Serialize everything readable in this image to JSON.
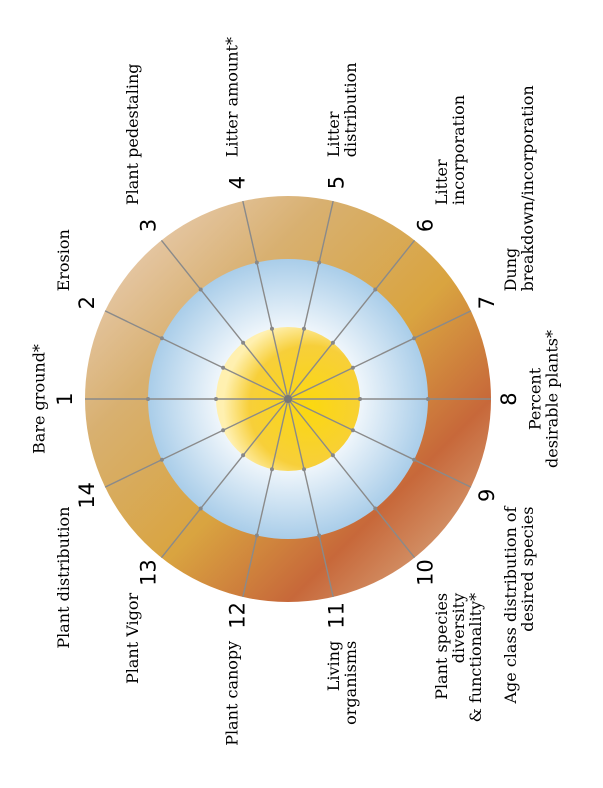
{
  "indicators": [
    {
      "number": "1",
      "label": [
        "Bare ground*"
      ]
    },
    {
      "number": "2",
      "label": [
        "Erosion"
      ]
    },
    {
      "number": "3",
      "label": [
        "Plant pedestaling"
      ]
    },
    {
      "number": "4",
      "label": [
        "Litter amount*"
      ]
    },
    {
      "number": "5",
      "label": [
        "Litter",
        "distribution"
      ]
    },
    {
      "number": "6",
      "label": [
        "Litter",
        "incorporation"
      ]
    },
    {
      "number": "7",
      "label": [
        "Dung",
        "breakdown/incorporation"
      ]
    },
    {
      "number": "8",
      "label": [
        "Percent",
        "desirable plants*"
      ]
    },
    {
      "number": "9",
      "label": [
        "Age class distribution of",
        "desired species"
      ]
    },
    {
      "number": "10",
      "label": [
        "Plant species",
        "diversity",
        "& functionality*"
      ]
    },
    {
      "number": "11",
      "label": [
        "Living",
        "organisms"
      ]
    },
    {
      "number": "12",
      "label": [
        "Plant canopy"
      ]
    },
    {
      "number": "13",
      "label": [
        "Plant Vigor"
      ]
    },
    {
      "number": "14",
      "label": [
        "Plant distribution"
      ]
    }
  ],
  "colors": {
    "outer_ring_light": "#efd8cc",
    "outer_ring_gold": "#d9a440",
    "outer_ring_rust": "#c7683a",
    "middle_ring": "#bcd9ee",
    "inner_circle": "#f8d21a",
    "spoke": "#8a8a8a"
  }
}
